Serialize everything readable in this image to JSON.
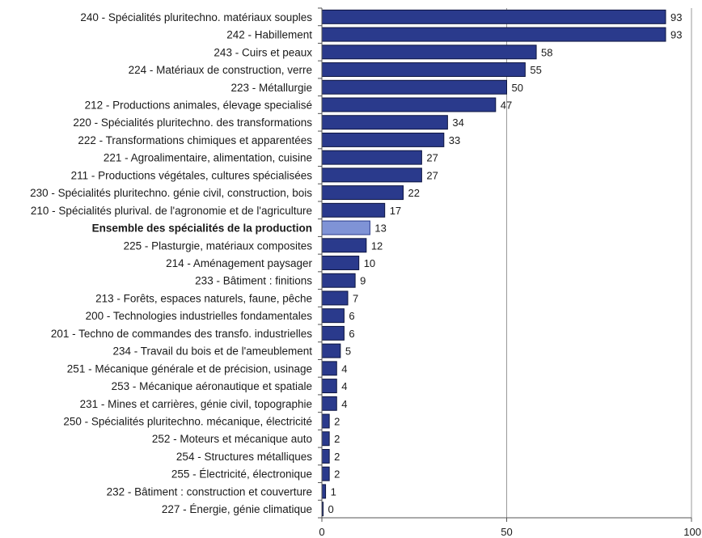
{
  "chart_data": {
    "type": "bar",
    "orientation": "horizontal",
    "title": "",
    "xlabel": "",
    "ylabel": "",
    "xlim": [
      0,
      100
    ],
    "x_ticks": [
      0,
      50,
      100
    ],
    "grid": "vertical at tick 50",
    "legend": "none",
    "colors": {
      "bar": "#2a3a8c",
      "bar_border": "#0d1540",
      "highlight": "#7f93d6",
      "highlight_border": "#2a3a8c",
      "axis": "#555555",
      "grid": "#9a9a9a"
    },
    "categories": [
      "240 - Spécialités pluritechno. matériaux souples",
      "242 - Habillement",
      "243 - Cuirs et peaux",
      "224 - Matériaux de construction, verre",
      "223 - Métallurgie",
      "212 - Productions animales, élevage specialisé",
      "220 - Spécialités pluritechno. des transformations",
      "222 - Transformations chimiques et apparentées",
      "221 - Agroalimentaire, alimentation, cuisine",
      "211 - Productions végétales, cultures spécialisées",
      "230 - Spécialités pluritechno. génie civil, construction, bois",
      "210 - Spécialités plurival. de l'agronomie et de l'agriculture",
      "Ensemble des spécialités de la production",
      "225 - Plasturgie, matériaux composites",
      "214 - Aménagement paysager",
      "233 - Bâtiment : finitions",
      "213 - Forêts, espaces naturels, faune, pêche",
      "200 - Technologies industrielles fondamentales",
      "201 - Techno de commandes des transfo. industrielles",
      "234 - Travail du bois et de l'ameublement",
      "251 - Mécanique générale et de précision, usinage",
      "253 - Mécanique aéronautique et spatiale",
      "231 - Mines et carrières, génie civil, topographie",
      "250 - Spécialités pluritechno. mécanique, électricité",
      "252 - Moteurs et mécanique auto",
      "254 - Structures métalliques",
      "255 - Électricité, électronique",
      "232 - Bâtiment : construction et couverture",
      "227 - Énergie, génie climatique"
    ],
    "values": [
      93,
      93,
      58,
      55,
      50,
      47,
      34,
      33,
      27,
      27,
      22,
      17,
      13,
      12,
      10,
      9,
      7,
      6,
      6,
      5,
      4,
      4,
      4,
      2,
      2,
      2,
      2,
      1,
      0
    ],
    "highlighted": [
      "Ensemble des spécialités de la production"
    ]
  }
}
